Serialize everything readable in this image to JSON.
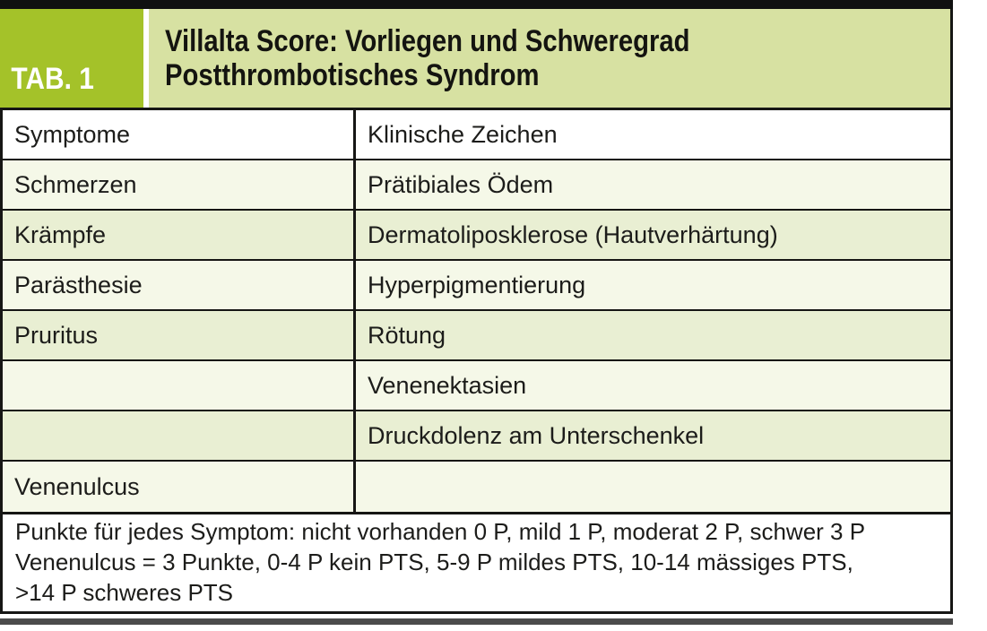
{
  "header": {
    "tab_label": "TAB. 1",
    "title_line1": "Villalta Score: Vorliegen und Schweregrad",
    "title_line2": "Postthrombotisches Syndrom"
  },
  "table": {
    "columns": [
      "Symptome",
      "Klinische Zeichen"
    ],
    "rows": [
      {
        "symptom": "Schmerzen",
        "sign": "Prätibiales Ödem"
      },
      {
        "symptom": "Krämpfe",
        "sign": "Dermatoliposklerose (Hautverhärtung)"
      },
      {
        "symptom": "Parästhesie",
        "sign": "Hyperpigmentierung"
      },
      {
        "symptom": "Pruritus",
        "sign": "Rötung"
      },
      {
        "symptom": "",
        "sign": "Venenektasien"
      },
      {
        "symptom": "",
        "sign": "Druckdolenz am Unterschenkel"
      },
      {
        "symptom": "Venenulcus",
        "sign": ""
      }
    ]
  },
  "footer": {
    "lines": [
      "Punkte für jedes Symptom: nicht vorhanden 0 P, mild 1 P, moderat 2 P, schwer 3 P",
      "Venenulcus = 3 Punkte, 0-4 P kein PTS, 5-9 P mildes PTS, 10-14 mässiges PTS,",
      ">14 P schweres PTS"
    ]
  },
  "colors": {
    "accent": "#a4c229",
    "band": "#d7e1a2",
    "cream": "#f5f8e8",
    "rowgreen": "#e9efd3",
    "line": "#161614",
    "topbar": "#101010",
    "botbar": "#4b4b4b"
  }
}
